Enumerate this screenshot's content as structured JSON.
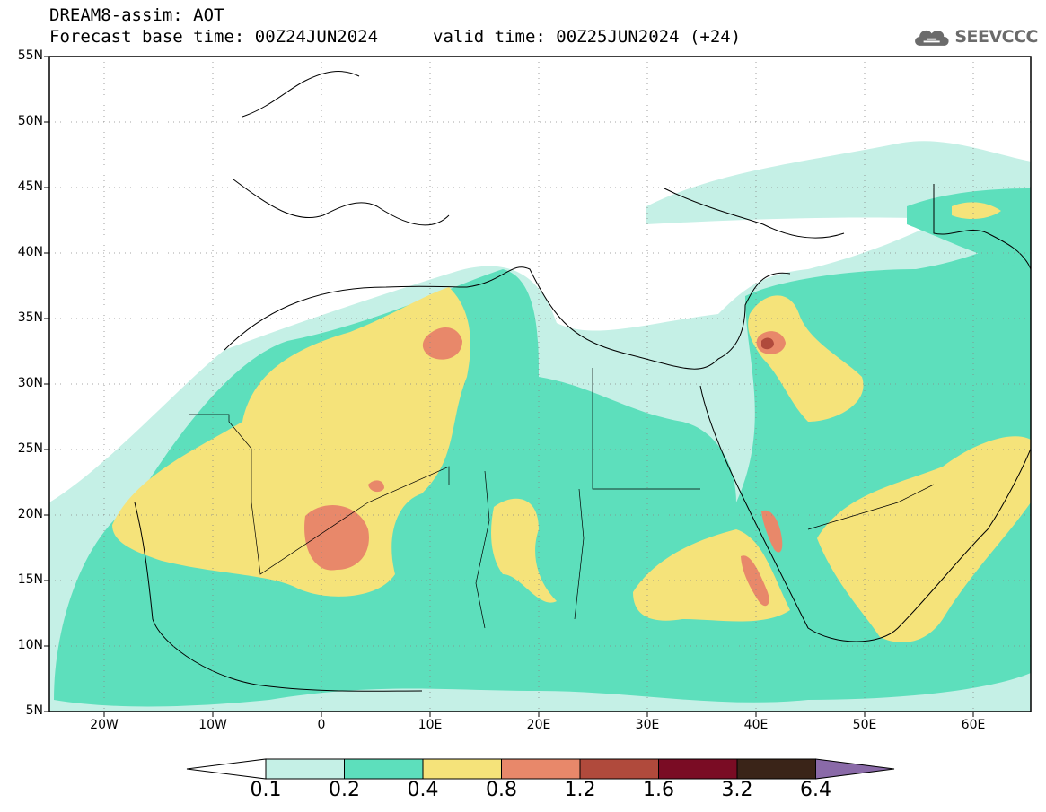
{
  "header": {
    "title": "DREAM8-assim: AOT",
    "base_time": "Forecast base time: 00Z24JUN2024",
    "valid_time": "valid time: 00Z25JUN2024 (+24)"
  },
  "logo": {
    "text": "SEEVCCC",
    "icon": "cloud-icon"
  },
  "axes": {
    "lat_labels": [
      "55N",
      "50N",
      "45N",
      "40N",
      "35N",
      "30N",
      "25N",
      "20N",
      "15N",
      "10N",
      "5N"
    ],
    "lon_labels": [
      "20W",
      "10W",
      "0",
      "10E",
      "20E",
      "30E",
      "40E",
      "50E",
      "60E"
    ]
  },
  "colorbar": {
    "labels": [
      "0.1",
      "0.2",
      "0.4",
      "0.8",
      "1.2",
      "1.6",
      "3.2",
      "6.4"
    ],
    "colors": [
      "#ffffff",
      "#c5f0e6",
      "#5ddfbc",
      "#f5e37a",
      "#e8886a",
      "#b04a3c",
      "#7a0c24",
      "#3a2418",
      "#8a6aa8"
    ]
  },
  "map": {
    "region": "North Africa, Middle East, Europe",
    "variable": "AOT"
  }
}
